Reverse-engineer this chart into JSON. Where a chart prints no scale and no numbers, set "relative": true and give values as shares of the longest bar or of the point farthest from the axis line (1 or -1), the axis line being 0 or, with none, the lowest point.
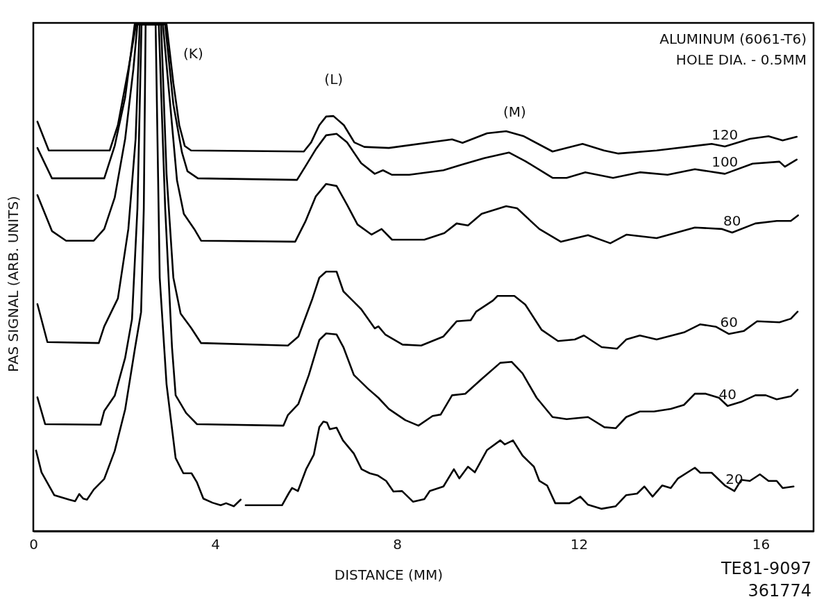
{
  "chart_data": {
    "type": "line",
    "relative": true,
    "xlabel": "DISTANCE (MM)",
    "ylabel": "PAS SIGNAL (ARB. UNITS)",
    "xlim": [
      0,
      17.16
    ],
    "xticks": [
      0,
      4,
      8,
      12,
      16
    ],
    "annotations": [
      "(K)",
      "(L)",
      "(M)",
      "ALUMINUM (6061-T6)",
      "HOLE DIA. - 0.5MM",
      "TE81-9097",
      "361774"
    ],
    "series": [
      {
        "name": "120",
        "color": "#000000",
        "x": [
          0.09,
          0.34,
          1.68,
          1.86,
          2.09,
          2.26,
          2.93,
          3.08,
          3.21,
          3.33,
          3.47,
          5.95,
          6.11,
          6.29,
          6.44,
          6.6,
          6.83,
          7.06,
          7.28,
          7.82,
          9.21,
          9.44,
          9.98,
          10.4,
          10.79,
          11.42,
          12.08,
          12.55,
          12.87,
          13.71,
          14.92,
          15.21,
          15.76,
          16.17,
          16.48,
          16.79
        ],
        "values": [
          0.808,
          0.751,
          0.751,
          0.801,
          0.911,
          1,
          1,
          0.884,
          0.801,
          0.76,
          0.751,
          0.749,
          0.767,
          0.801,
          0.818,
          0.819,
          0.801,
          0.767,
          0.758,
          0.756,
          0.773,
          0.766,
          0.785,
          0.789,
          0.779,
          0.749,
          0.764,
          0.751,
          0.745,
          0.751,
          0.764,
          0.759,
          0.774,
          0.779,
          0.771,
          0.778
        ]
      },
      {
        "name": "100",
        "color": "#000000",
        "x": [
          0.09,
          0.41,
          1.56,
          1.79,
          2.02,
          2.23,
          2.9,
          3.08,
          3.27,
          3.39,
          3.62,
          5.8,
          5.98,
          6.21,
          6.44,
          6.67,
          6.9,
          7.21,
          7.51,
          7.69,
          7.89,
          8.27,
          9.02,
          9.42,
          9.92,
          10.46,
          10.82,
          11.42,
          11.73,
          12.14,
          12.75,
          13.34,
          13.95,
          14.55,
          15.21,
          15.82,
          16.41,
          16.53,
          16.79
        ],
        "values": [
          0.756,
          0.696,
          0.696,
          0.76,
          0.856,
          1,
          1,
          0.842,
          0.747,
          0.71,
          0.696,
          0.693,
          0.719,
          0.753,
          0.781,
          0.784,
          0.767,
          0.726,
          0.705,
          0.712,
          0.703,
          0.703,
          0.712,
          0.723,
          0.736,
          0.747,
          0.73,
          0.697,
          0.697,
          0.708,
          0.697,
          0.708,
          0.703,
          0.714,
          0.705,
          0.725,
          0.729,
          0.719,
          0.733
        ]
      },
      {
        "name": "80",
        "color": "#000000",
        "x": [
          0.09,
          0.41,
          0.72,
          1.33,
          1.56,
          1.79,
          2.02,
          2.2,
          2.29,
          2.85,
          3.01,
          3.16,
          3.31,
          3.54,
          3.69,
          5.76,
          5.98,
          6.21,
          6.44,
          6.67,
          6.9,
          7.13,
          7.44,
          7.66,
          7.89,
          8.6,
          9.04,
          9.31,
          9.56,
          9.86,
          10.4,
          10.64,
          11.13,
          11.6,
          12.2,
          12.69,
          13.05,
          13.71,
          14.55,
          15.15,
          15.37,
          15.88,
          16.35,
          16.66,
          16.82
        ],
        "values": [
          0.663,
          0.592,
          0.573,
          0.573,
          0.596,
          0.658,
          0.774,
          0.911,
          1,
          1,
          0.842,
          0.692,
          0.626,
          0.596,
          0.573,
          0.571,
          0.61,
          0.66,
          0.685,
          0.681,
          0.644,
          0.605,
          0.585,
          0.596,
          0.575,
          0.575,
          0.588,
          0.607,
          0.603,
          0.626,
          0.641,
          0.637,
          0.596,
          0.571,
          0.584,
          0.568,
          0.585,
          0.578,
          0.599,
          0.596,
          0.589,
          0.607,
          0.612,
          0.612,
          0.623
        ]
      },
      {
        "name": "60",
        "color": "#000000",
        "x": [
          0.09,
          0.31,
          1.44,
          1.56,
          1.86,
          2.09,
          2.25,
          2.34,
          2.81,
          2.93,
          3.08,
          3.24,
          3.47,
          3.69,
          5.6,
          5.83,
          6.14,
          6.29,
          6.44,
          6.67,
          6.82,
          7.21,
          7.51,
          7.59,
          7.74,
          8.12,
          8.53,
          9.02,
          9.31,
          9.62,
          9.74,
          10.11,
          10.21,
          10.58,
          10.82,
          11.18,
          11.54,
          11.91,
          12.11,
          12.5,
          12.84,
          13.04,
          13.34,
          13.71,
          14.31,
          14.67,
          15.02,
          15.3,
          15.63,
          15.92,
          16.41,
          16.66,
          16.81
        ],
        "values": [
          0.448,
          0.373,
          0.371,
          0.404,
          0.459,
          0.596,
          0.774,
          1,
          1,
          0.705,
          0.5,
          0.429,
          0.401,
          0.371,
          0.366,
          0.384,
          0.459,
          0.5,
          0.512,
          0.512,
          0.473,
          0.438,
          0.4,
          0.404,
          0.388,
          0.368,
          0.366,
          0.384,
          0.414,
          0.416,
          0.433,
          0.455,
          0.464,
          0.464,
          0.447,
          0.397,
          0.375,
          0.378,
          0.386,
          0.363,
          0.36,
          0.378,
          0.386,
          0.378,
          0.392,
          0.408,
          0.403,
          0.389,
          0.395,
          0.414,
          0.412,
          0.419,
          0.433
        ]
      },
      {
        "name": "40",
        "color": "#000000",
        "x": [
          0.09,
          0.26,
          1.48,
          1.56,
          1.79,
          2.02,
          2.17,
          2.29,
          2.38,
          2.76,
          2.9,
          3.05,
          3.13,
          3.36,
          3.6,
          5.5,
          5.6,
          5.83,
          6.06,
          6.29,
          6.44,
          6.67,
          6.82,
          7.05,
          7.36,
          7.59,
          7.82,
          8.18,
          8.47,
          8.78,
          8.96,
          9.21,
          9.5,
          9.86,
          10.27,
          10.52,
          10.76,
          11.07,
          11.42,
          11.73,
          12.2,
          12.56,
          12.81,
          13.04,
          13.34,
          13.65,
          14.02,
          14.31,
          14.55,
          14.79,
          15.08,
          15.27,
          15.57,
          15.88,
          16.11,
          16.35,
          16.66,
          16.81
        ],
        "values": [
          0.264,
          0.211,
          0.21,
          0.237,
          0.267,
          0.342,
          0.418,
          0.637,
          1,
          1,
          0.637,
          0.363,
          0.268,
          0.233,
          0.211,
          0.208,
          0.229,
          0.251,
          0.308,
          0.377,
          0.39,
          0.388,
          0.363,
          0.308,
          0.281,
          0.263,
          0.241,
          0.219,
          0.208,
          0.227,
          0.23,
          0.268,
          0.271,
          0.3,
          0.332,
          0.334,
          0.311,
          0.263,
          0.225,
          0.221,
          0.225,
          0.205,
          0.203,
          0.225,
          0.236,
          0.236,
          0.241,
          0.249,
          0.271,
          0.271,
          0.263,
          0.247,
          0.255,
          0.268,
          0.268,
          0.26,
          0.266,
          0.279
        ]
      },
      {
        "name": "20",
        "color": "#000000",
        "x": [
          0.06,
          0.18,
          0.46,
          0.79,
          0.92,
          1.01,
          1.1,
          1.18,
          1.33,
          1.56,
          1.79,
          2.02,
          2.24,
          2.37,
          2.43,
          2.47,
          2.69,
          2.78,
          2.93,
          3.13,
          3.3,
          3.48,
          3.6,
          3.74,
          3.94,
          4.12,
          4.24,
          4.41,
          4.56,
          4.6,
          4.67,
          5.47,
          5.62,
          5.69,
          5.82,
          6.0,
          6.17,
          6.29,
          6.38,
          6.46,
          6.52,
          6.67,
          6.81,
          7.05,
          7.22,
          7.4,
          7.57,
          7.76,
          7.92,
          8.11,
          8.35,
          8.6,
          8.72,
          9.02,
          9.25,
          9.37,
          9.56,
          9.71,
          9.98,
          10.27,
          10.37,
          10.55,
          10.76,
          11.01,
          11.13,
          11.3,
          11.48,
          11.79,
          12.03,
          12.2,
          12.5,
          12.81,
          13.04,
          13.28,
          13.44,
          13.62,
          13.83,
          14.02,
          14.18,
          14.55,
          14.67,
          14.92,
          15.21,
          15.42,
          15.57,
          15.76,
          15.98,
          16.17,
          16.35,
          16.48,
          16.72
        ],
        "values": [
          0.159,
          0.116,
          0.071,
          0.062,
          0.059,
          0.073,
          0.064,
          0.062,
          0.082,
          0.103,
          0.158,
          0.24,
          0.363,
          0.432,
          0.637,
          1,
          1,
          0.5,
          0.29,
          0.144,
          0.114,
          0.114,
          0.096,
          0.064,
          0.056,
          0.051,
          0.055,
          0.049,
          0.062,
          null,
          0.051,
          0.051,
          0.075,
          0.085,
          0.079,
          0.122,
          0.151,
          0.205,
          0.216,
          0.214,
          0.201,
          0.204,
          0.179,
          0.153,
          0.122,
          0.114,
          0.11,
          0.099,
          0.078,
          0.079,
          0.058,
          0.063,
          0.079,
          0.088,
          0.122,
          0.104,
          0.127,
          0.116,
          0.16,
          0.179,
          0.171,
          0.179,
          0.149,
          0.127,
          0.099,
          0.09,
          0.055,
          0.055,
          0.068,
          0.052,
          0.044,
          0.049,
          0.071,
          0.074,
          0.088,
          0.068,
          0.09,
          0.085,
          0.104,
          0.125,
          0.115,
          0.115,
          0.09,
          0.079,
          0.101,
          0.099,
          0.112,
          0.099,
          0.099,
          0.085,
          0.088
        ]
      }
    ]
  }
}
